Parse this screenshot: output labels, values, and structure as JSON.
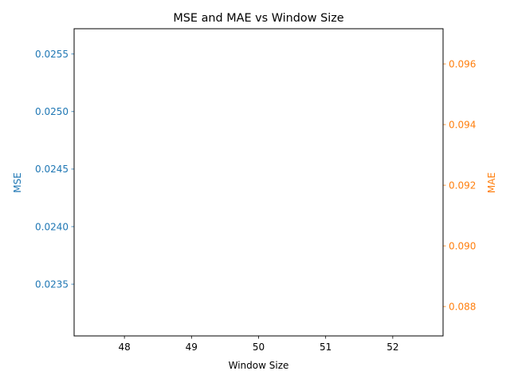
{
  "chart_data": {
    "type": "line",
    "title": "MSE and MAE vs Window Size",
    "xlabel": "Window Size",
    "x_ticks": [
      48,
      49,
      50,
      51,
      52
    ],
    "xlim": [
      47.25,
      52.75
    ],
    "grid": false,
    "y_left": {
      "label": "MSE",
      "color": "#1f77b4",
      "ticks": [
        0.0235,
        0.024,
        0.0245,
        0.025,
        0.0255
      ],
      "ylim": [
        0.02305,
        0.02572
      ]
    },
    "y_right": {
      "label": "MAE",
      "color": "#ff7f0e",
      "ticks": [
        0.088,
        0.09,
        0.092,
        0.094,
        0.096
      ],
      "ylim": [
        0.08703,
        0.09716
      ]
    },
    "series": [
      {
        "axis": "left",
        "x": [],
        "values": []
      },
      {
        "axis": "right",
        "x": [],
        "values": []
      }
    ]
  }
}
